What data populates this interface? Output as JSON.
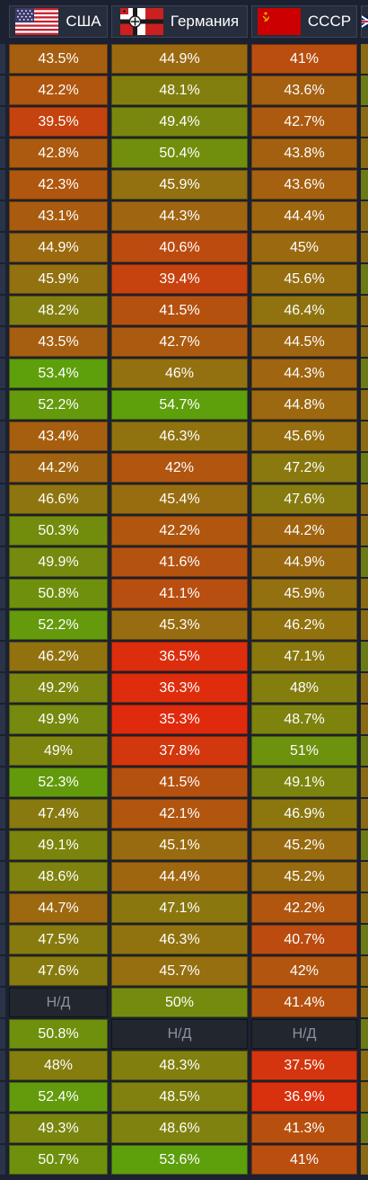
{
  "header": {
    "columns": [
      {
        "label": "США",
        "flag": "usa-flag-icon"
      },
      {
        "label": "Германия",
        "flag": "germany-flag-icon"
      },
      {
        "label": "СССР",
        "flag": "ussr-flag-icon"
      }
    ]
  },
  "colors": {
    "low": "#e02a0d",
    "mid": "#9a6a10",
    "high": "#5e9f0c",
    "na_background": "#22262e",
    "na_text": "#8c929b",
    "header_background": "#262d3d",
    "page_background": "#1b2130"
  },
  "rows": [
    {
      "usa": "43.5%",
      "germany": "44.9%",
      "ussr": "41%"
    },
    {
      "usa": "42.2%",
      "germany": "48.1%",
      "ussr": "43.6%"
    },
    {
      "usa": "39.5%",
      "germany": "49.4%",
      "ussr": "42.7%"
    },
    {
      "usa": "42.8%",
      "germany": "50.4%",
      "ussr": "43.8%"
    },
    {
      "usa": "42.3%",
      "germany": "45.9%",
      "ussr": "43.6%"
    },
    {
      "usa": "43.1%",
      "germany": "44.3%",
      "ussr": "44.4%"
    },
    {
      "usa": "44.9%",
      "germany": "40.6%",
      "ussr": "45%"
    },
    {
      "usa": "45.9%",
      "germany": "39.4%",
      "ussr": "45.6%"
    },
    {
      "usa": "48.2%",
      "germany": "41.5%",
      "ussr": "46.4%"
    },
    {
      "usa": "43.5%",
      "germany": "42.7%",
      "ussr": "44.5%"
    },
    {
      "usa": "53.4%",
      "germany": "46%",
      "ussr": "44.3%"
    },
    {
      "usa": "52.2%",
      "germany": "54.7%",
      "ussr": "44.8%"
    },
    {
      "usa": "43.4%",
      "germany": "46.3%",
      "ussr": "45.6%"
    },
    {
      "usa": "44.2%",
      "germany": "42%",
      "ussr": "47.2%"
    },
    {
      "usa": "46.6%",
      "germany": "45.4%",
      "ussr": "47.6%"
    },
    {
      "usa": "50.3%",
      "germany": "42.2%",
      "ussr": "44.2%"
    },
    {
      "usa": "49.9%",
      "germany": "41.6%",
      "ussr": "44.9%"
    },
    {
      "usa": "50.8%",
      "germany": "41.1%",
      "ussr": "45.9%"
    },
    {
      "usa": "52.2%",
      "germany": "45.3%",
      "ussr": "46.2%"
    },
    {
      "usa": "46.2%",
      "germany": "36.5%",
      "ussr": "47.1%"
    },
    {
      "usa": "49.2%",
      "germany": "36.3%",
      "ussr": "48%"
    },
    {
      "usa": "49.9%",
      "germany": "35.3%",
      "ussr": "48.7%"
    },
    {
      "usa": "49%",
      "germany": "37.8%",
      "ussr": "51%"
    },
    {
      "usa": "52.3%",
      "germany": "41.5%",
      "ussr": "49.1%"
    },
    {
      "usa": "47.4%",
      "germany": "42.1%",
      "ussr": "46.9%"
    },
    {
      "usa": "49.1%",
      "germany": "45.1%",
      "ussr": "45.2%"
    },
    {
      "usa": "48.6%",
      "germany": "44.4%",
      "ussr": "45.2%"
    },
    {
      "usa": "44.7%",
      "germany": "47.1%",
      "ussr": "42.2%"
    },
    {
      "usa": "47.5%",
      "germany": "46.3%",
      "ussr": "40.7%"
    },
    {
      "usa": "47.6%",
      "germany": "45.7%",
      "ussr": "42%"
    },
    {
      "usa": "Н/Д",
      "germany": "50%",
      "ussr": "41.4%"
    },
    {
      "usa": "50.8%",
      "germany": "Н/Д",
      "ussr": "Н/Д"
    },
    {
      "usa": "48%",
      "germany": "48.3%",
      "ussr": "37.5%"
    },
    {
      "usa": "52.4%",
      "germany": "48.5%",
      "ussr": "36.9%"
    },
    {
      "usa": "49.3%",
      "germany": "48.6%",
      "ussr": "41.3%"
    },
    {
      "usa": "50.7%",
      "germany": "53.6%",
      "ussr": "41%"
    }
  ]
}
